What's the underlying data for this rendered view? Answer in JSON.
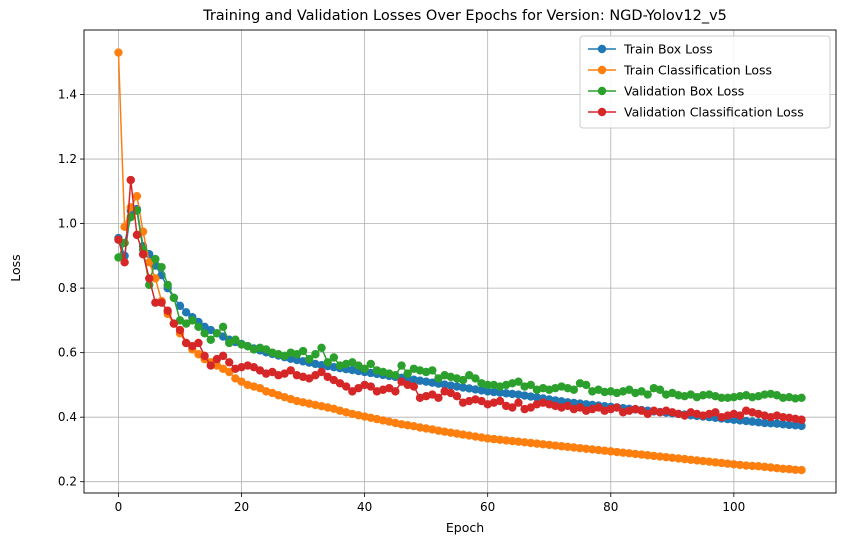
{
  "chart_data": {
    "type": "line",
    "title": "Training and Validation Losses Over Epochs for Version: NGD-Yolov12_v5",
    "xlabel": "Epoch",
    "ylabel": "Loss",
    "xlim": [
      -5.6,
      116.6
    ],
    "ylim": [
      0.165,
      1.6
    ],
    "xticks": [
      0,
      20,
      40,
      60,
      80,
      100
    ],
    "yticks": [
      0.2,
      0.4,
      0.6,
      0.8,
      1.0,
      1.2,
      1.4
    ],
    "grid": true,
    "legend_position": "top-right",
    "marker": "circle",
    "series": [
      {
        "name": "Train Box Loss",
        "color": "#1f77b4",
        "values": [
          0.955,
          0.9,
          1.04,
          1.045,
          0.93,
          0.905,
          0.87,
          0.84,
          0.8,
          0.77,
          0.745,
          0.725,
          0.71,
          0.695,
          0.68,
          0.67,
          0.66,
          0.65,
          0.64,
          0.633,
          0.627,
          0.62,
          0.613,
          0.607,
          0.601,
          0.596,
          0.591,
          0.586,
          0.581,
          0.577,
          0.573,
          0.569,
          0.565,
          0.561,
          0.558,
          0.555,
          0.552,
          0.549,
          0.546,
          0.543,
          0.54,
          0.537,
          0.534,
          0.531,
          0.528,
          0.525,
          0.522,
          0.519,
          0.516,
          0.513,
          0.51,
          0.507,
          0.504,
          0.501,
          0.498,
          0.495,
          0.492,
          0.489,
          0.486,
          0.483,
          0.48,
          0.478,
          0.476,
          0.474,
          0.472,
          0.47,
          0.467,
          0.464,
          0.461,
          0.458,
          0.455,
          0.452,
          0.449,
          0.446,
          0.444,
          0.442,
          0.44,
          0.438,
          0.436,
          0.434,
          0.432,
          0.43,
          0.428,
          0.426,
          0.424,
          0.422,
          0.42,
          0.418,
          0.416,
          0.414,
          0.412,
          0.41,
          0.408,
          0.406,
          0.404,
          0.402,
          0.4,
          0.398,
          0.396,
          0.394,
          0.392,
          0.39,
          0.388,
          0.386,
          0.384,
          0.382,
          0.381,
          0.38,
          0.378,
          0.376,
          0.375,
          0.373
        ]
      },
      {
        "name": "Train Classification Loss",
        "color": "#ff7f0e",
        "values": [
          1.53,
          0.99,
          1.05,
          1.085,
          0.975,
          0.88,
          0.83,
          0.76,
          0.72,
          0.69,
          0.66,
          0.63,
          0.61,
          0.595,
          0.58,
          0.57,
          0.56,
          0.55,
          0.54,
          0.52,
          0.51,
          0.5,
          0.495,
          0.49,
          0.48,
          0.475,
          0.468,
          0.462,
          0.456,
          0.45,
          0.446,
          0.442,
          0.438,
          0.434,
          0.43,
          0.426,
          0.42,
          0.415,
          0.41,
          0.406,
          0.402,
          0.398,
          0.394,
          0.39,
          0.386,
          0.382,
          0.378,
          0.375,
          0.372,
          0.368,
          0.365,
          0.362,
          0.358,
          0.355,
          0.352,
          0.349,
          0.346,
          0.343,
          0.34,
          0.337,
          0.334,
          0.332,
          0.33,
          0.328,
          0.326,
          0.324,
          0.322,
          0.32,
          0.318,
          0.316,
          0.314,
          0.312,
          0.31,
          0.308,
          0.306,
          0.304,
          0.302,
          0.3,
          0.298,
          0.296,
          0.294,
          0.292,
          0.29,
          0.288,
          0.286,
          0.284,
          0.282,
          0.28,
          0.278,
          0.276,
          0.274,
          0.272,
          0.27,
          0.268,
          0.266,
          0.264,
          0.262,
          0.26,
          0.258,
          0.256,
          0.254,
          0.252,
          0.25,
          0.249,
          0.248,
          0.246,
          0.244,
          0.242,
          0.24,
          0.239,
          0.237,
          0.236
        ]
      },
      {
        "name": "Validation Box Loss",
        "color": "#2ca02c",
        "values": [
          0.895,
          0.94,
          1.02,
          1.04,
          0.92,
          0.81,
          0.89,
          0.865,
          0.81,
          0.77,
          0.7,
          0.69,
          0.7,
          0.68,
          0.66,
          0.64,
          0.66,
          0.68,
          0.63,
          0.64,
          0.625,
          0.62,
          0.61,
          0.615,
          0.61,
          0.6,
          0.595,
          0.59,
          0.6,
          0.595,
          0.605,
          0.58,
          0.595,
          0.615,
          0.57,
          0.585,
          0.56,
          0.565,
          0.57,
          0.56,
          0.55,
          0.565,
          0.545,
          0.54,
          0.535,
          0.53,
          0.56,
          0.535,
          0.55,
          0.545,
          0.54,
          0.545,
          0.52,
          0.53,
          0.525,
          0.52,
          0.515,
          0.53,
          0.52,
          0.505,
          0.5,
          0.5,
          0.495,
          0.5,
          0.505,
          0.51,
          0.495,
          0.5,
          0.485,
          0.49,
          0.485,
          0.49,
          0.495,
          0.49,
          0.485,
          0.505,
          0.5,
          0.48,
          0.485,
          0.478,
          0.48,
          0.475,
          0.48,
          0.485,
          0.475,
          0.48,
          0.47,
          0.49,
          0.485,
          0.47,
          0.475,
          0.468,
          0.465,
          0.47,
          0.462,
          0.468,
          0.47,
          0.465,
          0.46,
          0.46,
          0.462,
          0.465,
          0.468,
          0.462,
          0.465,
          0.47,
          0.472,
          0.468,
          0.46,
          0.462,
          0.458,
          0.46
        ]
      },
      {
        "name": "Validation Classification Loss",
        "color": "#d62728",
        "values": [
          0.95,
          0.88,
          1.135,
          0.965,
          0.905,
          0.83,
          0.755,
          0.755,
          0.73,
          0.69,
          0.67,
          0.63,
          0.62,
          0.63,
          0.59,
          0.56,
          0.58,
          0.59,
          0.57,
          0.55,
          0.555,
          0.56,
          0.555,
          0.545,
          0.535,
          0.54,
          0.53,
          0.535,
          0.545,
          0.53,
          0.525,
          0.52,
          0.53,
          0.54,
          0.525,
          0.515,
          0.505,
          0.495,
          0.48,
          0.49,
          0.5,
          0.495,
          0.48,
          0.485,
          0.49,
          0.48,
          0.51,
          0.5,
          0.495,
          0.46,
          0.465,
          0.47,
          0.46,
          0.48,
          0.475,
          0.465,
          0.445,
          0.45,
          0.455,
          0.45,
          0.44,
          0.445,
          0.45,
          0.435,
          0.43,
          0.445,
          0.425,
          0.43,
          0.44,
          0.445,
          0.44,
          0.435,
          0.43,
          0.435,
          0.425,
          0.43,
          0.42,
          0.425,
          0.43,
          0.42,
          0.425,
          0.43,
          0.415,
          0.42,
          0.425,
          0.42,
          0.41,
          0.42,
          0.415,
          0.42,
          0.415,
          0.41,
          0.405,
          0.415,
          0.41,
          0.405,
          0.41,
          0.415,
          0.4,
          0.405,
          0.41,
          0.405,
          0.42,
          0.415,
          0.41,
          0.405,
          0.4,
          0.405,
          0.4,
          0.398,
          0.395,
          0.392
        ]
      }
    ]
  }
}
